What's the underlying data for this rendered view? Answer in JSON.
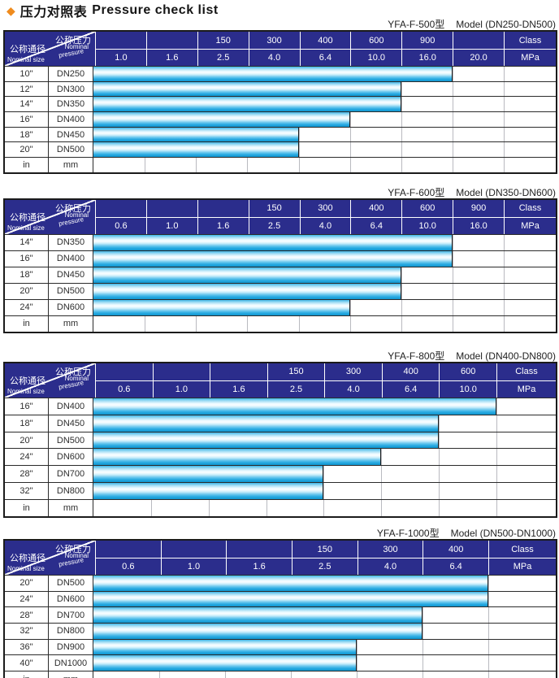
{
  "page_title": {
    "diamond": "◆",
    "zh": "压力对照表",
    "en": "Pressure check list"
  },
  "header_labels": {
    "pressure_zh": "公称压力",
    "pressure_en_1": "Nominal",
    "pressure_en_2": "pressure",
    "size_zh": "公称通径",
    "size_en": "Nominal size",
    "class_label": "Class",
    "mpa_label": "MPa",
    "unit_in": "in",
    "unit_mm": "mm"
  },
  "tables": [
    {
      "model": "YFA-F-500型",
      "model_range": "Model (DN250-DN500)",
      "class_row": [
        "",
        "",
        "150",
        "300",
        "400",
        "600",
        "900",
        ""
      ],
      "mpa_row": [
        "1.0",
        "1.6",
        "2.5",
        "4.0",
        "6.4",
        "10.0",
        "16.0",
        "20.0"
      ],
      "rows": [
        {
          "inch": "10\"",
          "dn": "DN250",
          "max_mpa": "16.0",
          "bar_cols": 7
        },
        {
          "inch": "12\"",
          "dn": "DN300",
          "max_mpa": "10.0",
          "bar_cols": 6
        },
        {
          "inch": "14\"",
          "dn": "DN350",
          "max_mpa": "10.0",
          "bar_cols": 6
        },
        {
          "inch": "16\"",
          "dn": "DN400",
          "max_mpa": "6.4",
          "bar_cols": 5
        },
        {
          "inch": "18\"",
          "dn": "DN450",
          "max_mpa": "4.0",
          "bar_cols": 4
        },
        {
          "inch": "20\"",
          "dn": "DN500",
          "max_mpa": "4.0",
          "bar_cols": 4
        }
      ]
    },
    {
      "model": "YFA-F-600型",
      "model_range": "Model (DN350-DN600)",
      "class_row": [
        "",
        "",
        "",
        "150",
        "300",
        "400",
        "600",
        "900"
      ],
      "mpa_row": [
        "0.6",
        "1.0",
        "1.6",
        "2.5",
        "4.0",
        "6.4",
        "10.0",
        "16.0"
      ],
      "rows": [
        {
          "inch": "14\"",
          "dn": "DN350",
          "max_mpa": "10.0",
          "bar_cols": 7
        },
        {
          "inch": "16\"",
          "dn": "DN400",
          "max_mpa": "10.0",
          "bar_cols": 7
        },
        {
          "inch": "18\"",
          "dn": "DN450",
          "max_mpa": "6.4",
          "bar_cols": 6
        },
        {
          "inch": "20\"",
          "dn": "DN500",
          "max_mpa": "6.4",
          "bar_cols": 6
        },
        {
          "inch": "24\"",
          "dn": "DN600",
          "max_mpa": "4.0",
          "bar_cols": 5
        }
      ]
    },
    {
      "model": "YFA-F-800型",
      "model_range": "Model (DN400-DN800)",
      "class_row": [
        "",
        "",
        "",
        "150",
        "300",
        "400",
        "600"
      ],
      "mpa_row": [
        "0.6",
        "1.0",
        "1.6",
        "2.5",
        "4.0",
        "6.4",
        "10.0"
      ],
      "rows": [
        {
          "inch": "16\"",
          "dn": "DN400",
          "max_mpa": "10.0",
          "bar_cols": 7
        },
        {
          "inch": "18\"",
          "dn": "DN450",
          "max_mpa": "6.4",
          "bar_cols": 6
        },
        {
          "inch": "20\"",
          "dn": "DN500",
          "max_mpa": "6.4",
          "bar_cols": 6
        },
        {
          "inch": "24\"",
          "dn": "DN600",
          "max_mpa": "4.0",
          "bar_cols": 5
        },
        {
          "inch": "28\"",
          "dn": "DN700",
          "max_mpa": "2.5",
          "bar_cols": 4
        },
        {
          "inch": "32\"",
          "dn": "DN800",
          "max_mpa": "2.5",
          "bar_cols": 4
        }
      ]
    },
    {
      "model": "YFA-F-1000型",
      "model_range": "Model (DN500-DN1000)",
      "class_row": [
        "",
        "",
        "",
        "150",
        "300",
        "400"
      ],
      "mpa_row": [
        "0.6",
        "1.0",
        "1.6",
        "2.5",
        "4.0",
        "6.4"
      ],
      "rows": [
        {
          "inch": "20\"",
          "dn": "DN500",
          "max_mpa": "6.4",
          "bar_cols": 6
        },
        {
          "inch": "24\"",
          "dn": "DN600",
          "max_mpa": "6.4",
          "bar_cols": 6
        },
        {
          "inch": "28\"",
          "dn": "DN700",
          "max_mpa": "4.0",
          "bar_cols": 5
        },
        {
          "inch": "32\"",
          "dn": "DN800",
          "max_mpa": "4.0",
          "bar_cols": 5
        },
        {
          "inch": "36\"",
          "dn": "DN900",
          "max_mpa": "2.5",
          "bar_cols": 4
        },
        {
          "inch": "40\"",
          "dn": "DN1000",
          "max_mpa": "2.5",
          "bar_cols": 4
        }
      ]
    }
  ]
}
